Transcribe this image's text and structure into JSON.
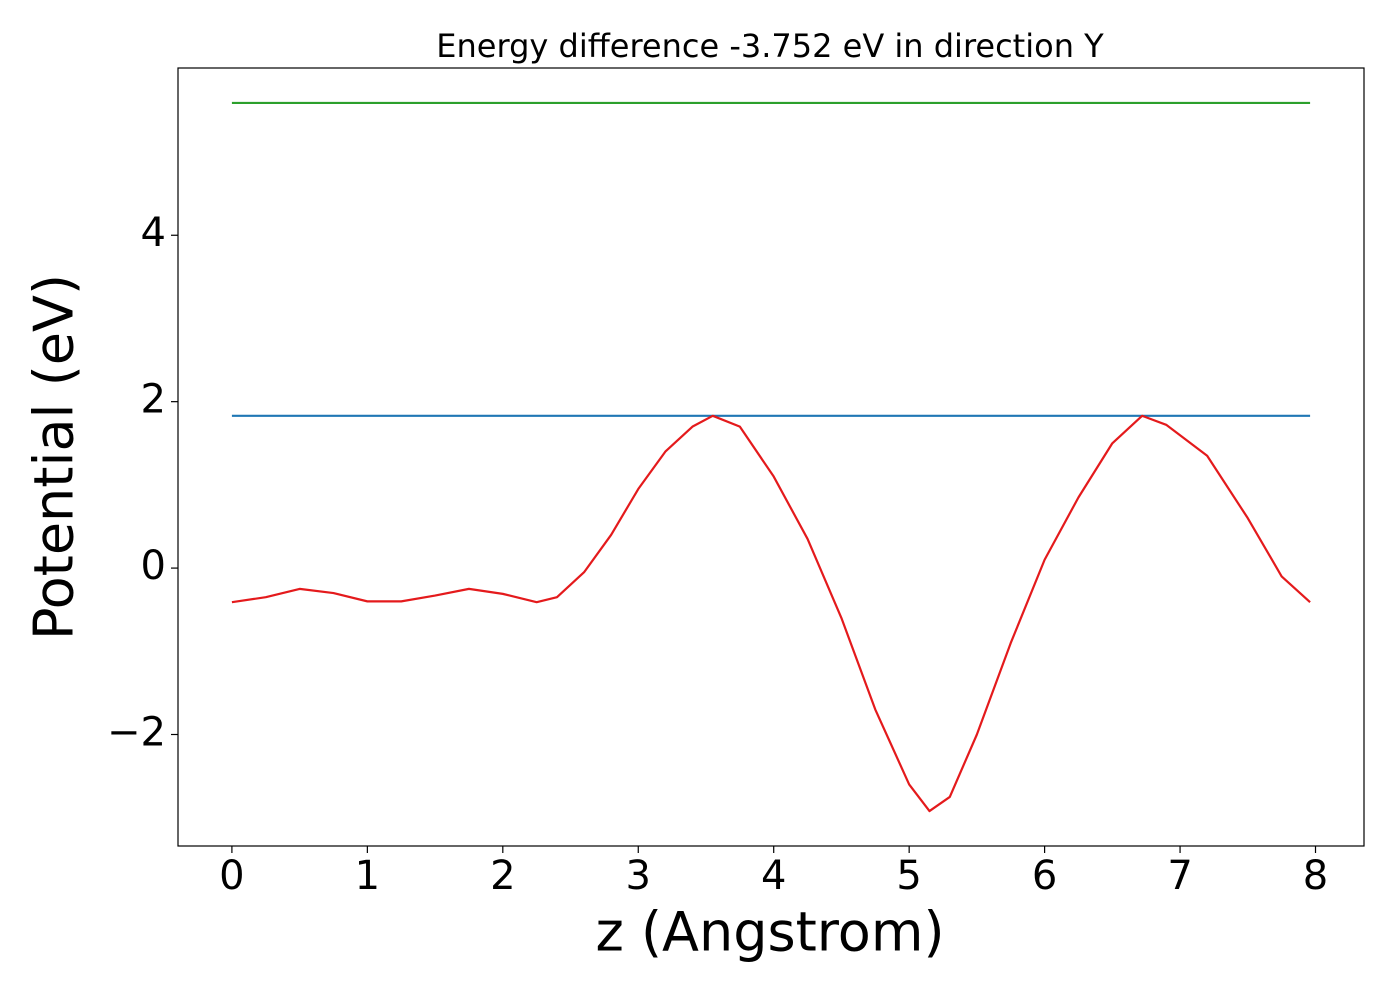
{
  "chart_data": {
    "type": "line",
    "title": "Energy difference -3.752 eV in direction Y",
    "xlabel": "z (Angstrom)",
    "ylabel": "Potential (eV)",
    "xlim": [
      -0.398,
      8.358
    ],
    "ylim": [
      -3.34,
      6.01
    ],
    "xticks": [
      0,
      1,
      2,
      3,
      4,
      5,
      6,
      7,
      8
    ],
    "yticks": [
      {
        "value": -2,
        "label": "−2"
      },
      0,
      2,
      4
    ],
    "series": [
      {
        "color": "#2ca02c",
        "x": [
          0,
          7.96
        ],
        "values": [
          5.59,
          5.59
        ]
      },
      {
        "color": "#1f77b4",
        "x": [
          0,
          7.96
        ],
        "values": [
          1.83,
          1.83
        ]
      },
      {
        "color": "#e41a1c",
        "x": [
          0,
          0.25,
          0.5,
          0.75,
          1.0,
          1.25,
          1.5,
          1.75,
          2.0,
          2.25,
          2.4,
          2.6,
          2.8,
          3.0,
          3.2,
          3.4,
          3.55,
          3.75,
          4.0,
          4.25,
          4.5,
          4.75,
          5.0,
          5.15,
          5.3,
          5.5,
          5.75,
          6.0,
          6.25,
          6.5,
          6.72,
          6.9,
          7.2,
          7.5,
          7.75,
          7.96
        ],
        "values": [
          -0.41,
          -0.35,
          -0.25,
          -0.3,
          -0.4,
          -0.4,
          -0.33,
          -0.25,
          -0.31,
          -0.41,
          -0.35,
          -0.05,
          0.4,
          0.95,
          1.4,
          1.7,
          1.83,
          1.7,
          1.1,
          0.35,
          -0.6,
          -1.7,
          -2.6,
          -2.92,
          -2.75,
          -2.0,
          -0.9,
          0.1,
          0.85,
          1.5,
          1.83,
          1.72,
          1.35,
          0.6,
          -0.1,
          -0.41
        ]
      }
    ]
  }
}
